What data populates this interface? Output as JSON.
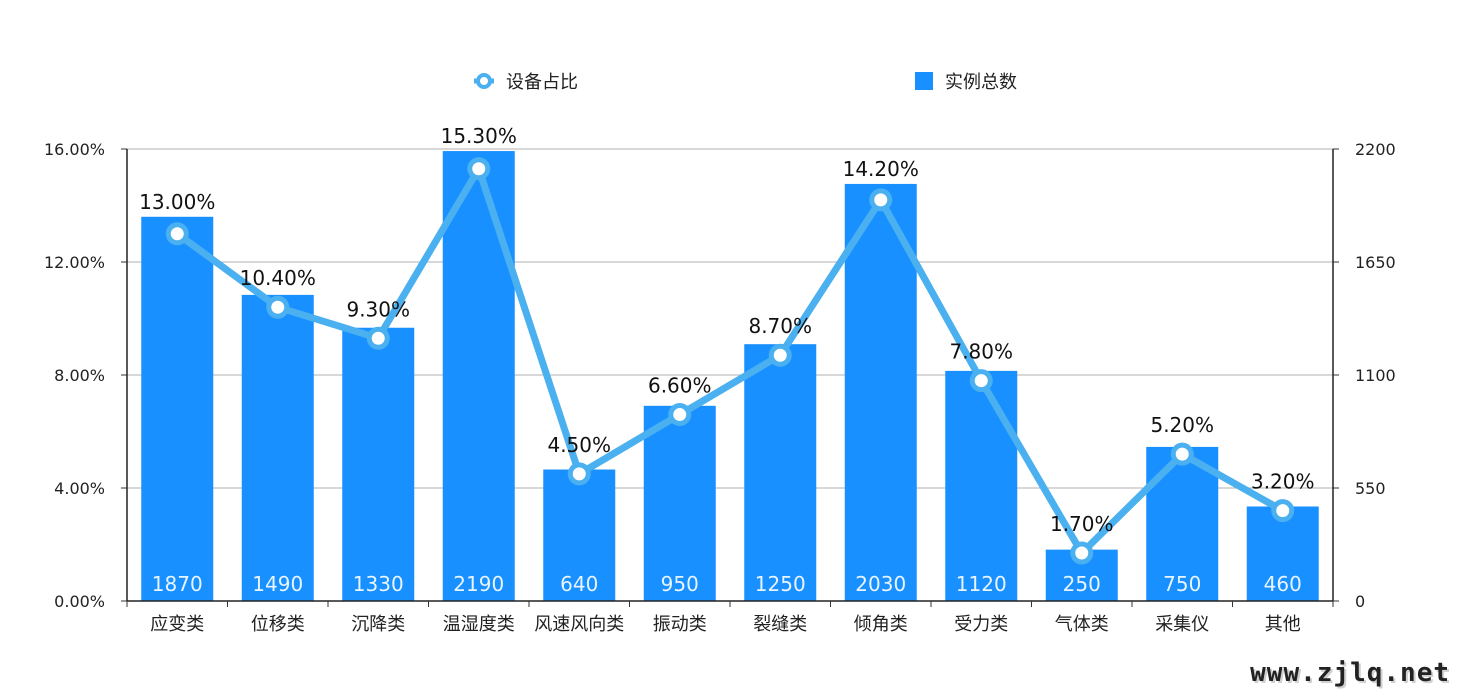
{
  "chart_data": {
    "type": "bar",
    "categories": [
      "应变类",
      "位移类",
      "沉降类",
      "温湿度类",
      "风速风向类",
      "振动类",
      "裂缝类",
      "倾角类",
      "受力类",
      "气体类",
      "采集仪",
      "其他"
    ],
    "series": [
      {
        "name": "实例总数",
        "type": "bar",
        "axis": "right",
        "color": "#1890ff",
        "values": [
          1870,
          1490,
          1330,
          2190,
          640,
          950,
          1250,
          2030,
          1120,
          250,
          750,
          460
        ],
        "labels": [
          "1870",
          "1490",
          "1330",
          "2190",
          "640",
          "950",
          "1250",
          "2030",
          "1120",
          "250",
          "750",
          "460"
        ]
      },
      {
        "name": "设备占比",
        "type": "line",
        "axis": "left",
        "color": "#4ab0f0",
        "values": [
          13.0,
          10.4,
          9.3,
          15.3,
          4.5,
          6.6,
          8.7,
          14.2,
          7.8,
          1.7,
          5.2,
          3.2
        ],
        "labels": [
          "13.00%",
          "10.40%",
          "9.30%",
          "15.30%",
          "4.50%",
          "6.60%",
          "8.70%",
          "14.20%",
          "7.80%",
          "1.70%",
          "5.20%",
          "3.20%"
        ]
      }
    ],
    "y_left": {
      "min": 0,
      "max": 16,
      "ticks": [
        "0.00%",
        "4.00%",
        "8.00%",
        "12.00%",
        "16.00%"
      ]
    },
    "y_right": {
      "min": 0,
      "max": 2200,
      "ticks": [
        "0",
        "550",
        "1100",
        "1650",
        "2200"
      ]
    },
    "grid": true,
    "legend_position": "top"
  },
  "watermark": "www.zjlq.net"
}
